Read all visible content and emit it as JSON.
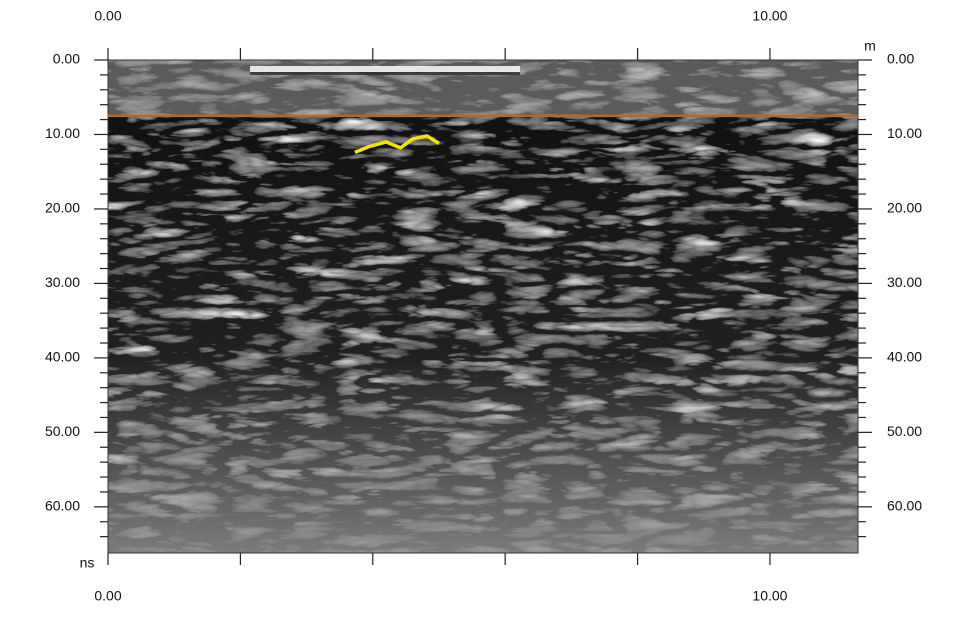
{
  "chart_data": {
    "type": "radargram",
    "x_unit": "m",
    "y_unit": "ns",
    "xlim": [
      0,
      11.33
    ],
    "ylim": [
      0,
      66.2
    ],
    "xticks": [
      {
        "value": 0,
        "label": "0.00"
      },
      {
        "value": 10,
        "label": "10.00"
      }
    ],
    "x_minor_ticks": [
      2,
      4,
      6,
      8
    ],
    "yticks": [
      {
        "value": 0,
        "label": "0.00"
      },
      {
        "value": 10,
        "label": "10.00"
      },
      {
        "value": 20,
        "label": "20.00"
      },
      {
        "value": 30,
        "label": "30.00"
      },
      {
        "value": 40,
        "label": "40.00"
      },
      {
        "value": 50,
        "label": "50.00"
      },
      {
        "value": 60,
        "label": "60.00"
      }
    ],
    "y_minor_ticks": [
      2,
      4,
      6,
      8,
      12,
      14,
      16,
      18,
      22,
      24,
      26,
      28,
      32,
      34,
      36,
      38,
      42,
      44,
      46,
      48,
      52,
      54,
      56,
      58,
      62,
      64
    ],
    "reference_line": {
      "value": 7.5,
      "color": "#b0692a"
    },
    "trace": {
      "color": "#f2e600",
      "x": [
        3.73,
        3.95,
        4.2,
        4.42,
        4.6,
        4.82,
        5.0
      ],
      "y": [
        12.4,
        11.6,
        11.0,
        11.8,
        10.6,
        10.2,
        11.2
      ]
    }
  }
}
